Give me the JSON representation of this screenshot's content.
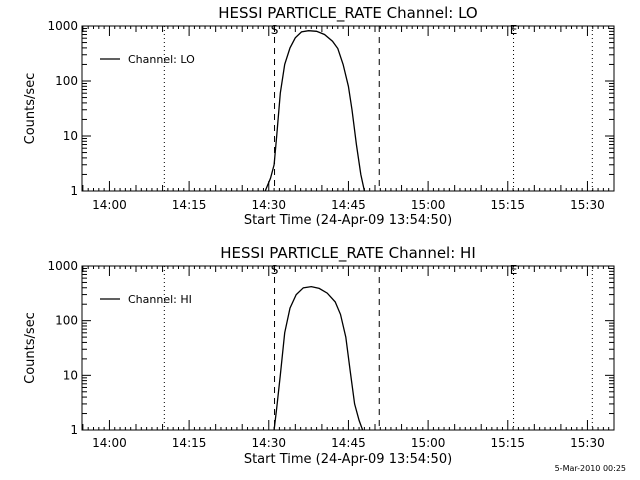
{
  "footer": {
    "timestamp": "5-Mar-2010 00:25"
  },
  "chart_data": [
    {
      "type": "line",
      "title": "HESSI PARTICLE_RATE Channel: LO",
      "xlabel": "Start Time (24-Apr-09 13:54:50)",
      "ylabel": "Counts/sec",
      "yscale": "log",
      "ylim": [
        1,
        1000
      ],
      "xlim": [
        "13:54:50",
        "15:35:00"
      ],
      "x_ticks": [
        "14:00",
        "14:15",
        "14:30",
        "14:45",
        "15:00",
        "15:15",
        "15:30"
      ],
      "y_ticks": [
        "1",
        "10",
        "100",
        "1000"
      ],
      "legend": {
        "position": "top-left",
        "entries": [
          "Channel: LO"
        ]
      },
      "markers": [
        {
          "time": "14:31:05",
          "label": "S",
          "style": "dashed"
        },
        {
          "time": "14:50:48",
          "label": "",
          "style": "dashed"
        },
        {
          "time": "14:10:20",
          "label": "",
          "style": "dotted"
        },
        {
          "time": "15:16:05",
          "label": "E",
          "style": "dotted"
        },
        {
          "time": "15:30:55",
          "label": "",
          "style": "dotted"
        }
      ],
      "series": [
        {
          "name": "Channel: LO",
          "x": [
            "14:29:20",
            "14:30:20",
            "14:31:00",
            "14:31:30",
            "14:32:10",
            "14:33:00",
            "14:34:00",
            "14:35:00",
            "14:36:10",
            "14:37:30",
            "14:39:00",
            "14:40:30",
            "14:42:00",
            "14:43:00",
            "14:44:00",
            "14:45:00",
            "14:45:40",
            "14:46:30",
            "14:47:20",
            "14:48:00"
          ],
          "y": [
            1,
            1.7,
            3,
            10,
            60,
            200,
            400,
            610,
            780,
            820,
            800,
            700,
            530,
            390,
            200,
            80,
            30,
            7,
            2,
            1
          ]
        }
      ]
    },
    {
      "type": "line",
      "title": "HESSI PARTICLE_RATE Channel: HI",
      "xlabel": "Start Time (24-Apr-09 13:54:50)",
      "ylabel": "Counts/sec",
      "yscale": "log",
      "ylim": [
        1,
        1000
      ],
      "xlim": [
        "13:54:50",
        "15:35:00"
      ],
      "x_ticks": [
        "14:00",
        "14:15",
        "14:30",
        "14:45",
        "15:00",
        "15:15",
        "15:30"
      ],
      "y_ticks": [
        "1",
        "10",
        "100",
        "1000"
      ],
      "legend": {
        "position": "top-left",
        "entries": [
          "Channel: HI"
        ]
      },
      "markers": [
        {
          "time": "14:31:05",
          "label": "S",
          "style": "dashed"
        },
        {
          "time": "14:50:48",
          "label": "",
          "style": "dashed"
        },
        {
          "time": "14:10:20",
          "label": "",
          "style": "dotted"
        },
        {
          "time": "15:16:05",
          "label": "E",
          "style": "dotted"
        },
        {
          "time": "15:30:55",
          "label": "",
          "style": "dotted"
        }
      ],
      "series": [
        {
          "name": "Channel: HI",
          "x": [
            "14:31:00",
            "14:31:30",
            "14:32:10",
            "14:33:00",
            "14:34:00",
            "14:35:10",
            "14:36:30",
            "14:38:00",
            "14:39:30",
            "14:41:00",
            "14:42:30",
            "14:43:30",
            "14:44:30",
            "14:45:20",
            "14:46:10",
            "14:47:00",
            "14:47:40"
          ],
          "y": [
            1,
            2.5,
            10,
            60,
            170,
            300,
            400,
            420,
            390,
            320,
            220,
            130,
            50,
            12,
            3,
            1.5,
            1
          ]
        }
      ]
    }
  ]
}
